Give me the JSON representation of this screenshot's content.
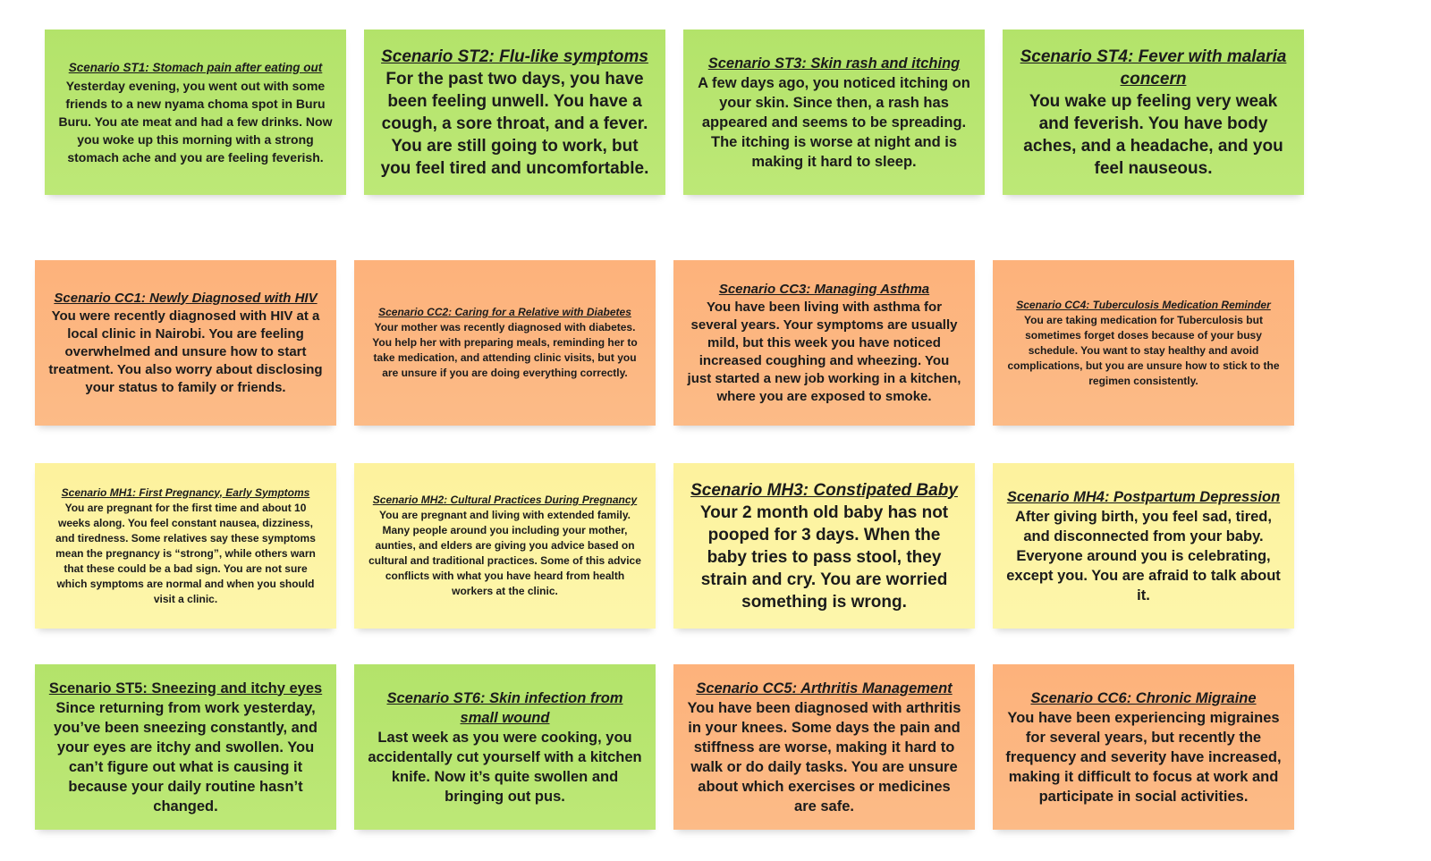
{
  "colors": {
    "green": "#b5e46c",
    "orange": "#fdb07a",
    "yellow": "#fdf4a3"
  },
  "notes": [
    {
      "title": "Scenario ST1: Stomach pain after eating out",
      "body": "Yesterday evening, you went out with some friends to a new nyama choma spot in Buru Buru. You ate meat and had a few drinks. Now you woke up this morning with a strong stomach ache and you are feeling feverish."
    },
    {
      "title": "Scenario ST2: Flu-like symptoms",
      "body": "For the past two days, you have been feeling unwell. You have a cough, a sore throat, and a fever. You are still going to work, but you feel tired and uncomfortable."
    },
    {
      "title": "Scenario ST3: Skin rash and itching",
      "body": "A few days ago, you noticed itching on your skin. Since then, a rash has appeared and seems to be spreading. The itching is worse at night and is making it hard to sleep."
    },
    {
      "title": "Scenario ST4: Fever with malaria concern",
      "body": "You wake up feeling very weak and feverish. You have body aches, and a headache, and you feel nauseous."
    },
    {
      "title": "Scenario CC1: Newly Diagnosed with HIV",
      "body": "You were recently diagnosed with HIV at a local clinic in Nairobi. You are feeling overwhelmed and unsure how to start treatment. You also worry about disclosing your status to family or friends."
    },
    {
      "title": "Scenario CC2: Caring for a Relative with Diabetes",
      "body": "Your mother was recently diagnosed with diabetes. You help her with preparing meals, reminding her to take medication, and attending clinic visits, but you are unsure if you are doing everything correctly."
    },
    {
      "title": "Scenario CC3: Managing Asthma",
      "body": "You have been living with asthma for several years. Your symptoms are usually mild, but this week you have noticed increased coughing and wheezing. You just started a new job working in a kitchen, where you are exposed to smoke."
    },
    {
      "title": "Scenario CC4: Tuberculosis Medication Reminder",
      "body": "You are taking medication for Tuberculosis but sometimes forget doses because of your busy schedule. You want to stay healthy and avoid complications, but you are unsure how to stick to the regimen consistently."
    },
    {
      "title": "Scenario MH1: First Pregnancy, Early Symptoms",
      "body": "You are pregnant for the first time and about 10 weeks along. You feel constant nausea, dizziness, and tiredness. Some relatives say these symptoms mean the pregnancy is “strong”, while others warn that these could be a bad sign. You are not sure which symptoms are normal and when you should visit a clinic."
    },
    {
      "title": "Scenario MH2: Cultural Practices During Pregnancy",
      "body": "You are pregnant and living with extended family. Many people around you including your mother, aunties, and elders are giving you advice based on cultural and traditional practices. Some of this advice conflicts with what you have heard from health workers at the clinic."
    },
    {
      "title": "Scenario MH3: Constipated Baby",
      "body": "Your 2 month old baby has not pooped for 3 days. When the baby tries to pass stool, they strain and cry. You are worried something is wrong."
    },
    {
      "title": "Scenario MH4: Postpartum Depression",
      "body": "After giving birth, you feel sad, tired, and disconnected from your baby. Everyone around you is celebrating, except you. You are afraid to talk about it."
    },
    {
      "title": "Scenario ST5: Sneezing and itchy eyes",
      "body": "Since returning from work yesterday, you’ve been sneezing constantly, and your eyes are itchy and swollen. You can’t figure out what is causing it because your daily routine hasn’t changed."
    },
    {
      "title": "Scenario ST6: Skin infection from small wound",
      "body": "Last week as you were cooking, you accidentally cut yourself with a kitchen knife. Now it’s quite swollen and bringing out pus."
    },
    {
      "title": "Scenario CC5: Arthritis Management",
      "body": "You have been diagnosed with arthritis in your knees. Some days the pain and stiffness are worse, making it hard to walk or do daily tasks. You are unsure about which exercises or medicines are safe."
    },
    {
      "title": "Scenario CC6: Chronic Migraine",
      "body": "You have been experiencing migraines for several years, but recently the frequency and severity have increased, making it difficult to focus at work and participate in social activities."
    }
  ]
}
